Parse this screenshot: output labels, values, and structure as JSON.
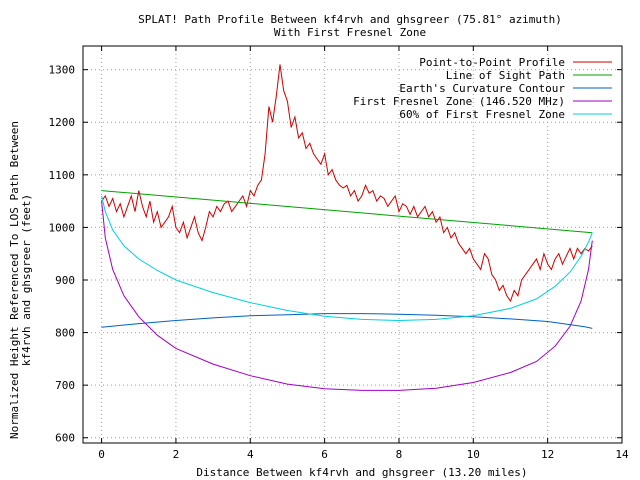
{
  "chart_data": {
    "type": "line",
    "title": "SPLAT! Path Profile Between kf4rvh and ghsgreer (75.81° azimuth)",
    "subtitle": "With First Fresnel Zone",
    "xlabel": "Distance Between kf4rvh and ghsgreer (13.20 miles)",
    "ylabel_lines": [
      "Normalized Height Referenced To LOS Path Between",
      "kf4rvh and ghsgreer (feet)"
    ],
    "xlim": [
      -0.5,
      14
    ],
    "ylim": [
      590,
      1345
    ],
    "x_ticks": [
      0,
      2,
      4,
      6,
      8,
      10,
      12,
      14
    ],
    "x_tick_labels": [
      "0",
      "2",
      "4",
      "6",
      "8",
      "10",
      "12",
      "14"
    ],
    "y_ticks": [
      600,
      700,
      800,
      900,
      1000,
      1100,
      1200,
      1300
    ],
    "y_tick_labels": [
      "600",
      "700",
      "800",
      "900",
      "1000",
      "1100",
      "1200",
      "1300"
    ],
    "grid": true,
    "legend_position": "top-right",
    "series": [
      {
        "name": "Point-to-Point Profile",
        "color": "#cc0000",
        "x": [
          0.0,
          0.1,
          0.2,
          0.3,
          0.4,
          0.5,
          0.6,
          0.7,
          0.8,
          0.9,
          1.0,
          1.1,
          1.2,
          1.3,
          1.4,
          1.5,
          1.6,
          1.7,
          1.8,
          1.9,
          2.0,
          2.1,
          2.2,
          2.3,
          2.4,
          2.5,
          2.6,
          2.7,
          2.8,
          2.9,
          3.0,
          3.1,
          3.2,
          3.3,
          3.4,
          3.5,
          3.6,
          3.7,
          3.8,
          3.9,
          4.0,
          4.1,
          4.2,
          4.3,
          4.4,
          4.5,
          4.6,
          4.7,
          4.8,
          4.9,
          5.0,
          5.1,
          5.2,
          5.3,
          5.4,
          5.5,
          5.6,
          5.7,
          5.8,
          5.9,
          6.0,
          6.1,
          6.2,
          6.3,
          6.4,
          6.5,
          6.6,
          6.7,
          6.8,
          6.9,
          7.0,
          7.1,
          7.2,
          7.3,
          7.4,
          7.5,
          7.6,
          7.7,
          7.8,
          7.9,
          8.0,
          8.1,
          8.2,
          8.3,
          8.4,
          8.5,
          8.6,
          8.7,
          8.8,
          8.9,
          9.0,
          9.1,
          9.2,
          9.3,
          9.4,
          9.5,
          9.6,
          9.7,
          9.8,
          9.9,
          10.0,
          10.1,
          10.2,
          10.3,
          10.4,
          10.5,
          10.6,
          10.7,
          10.8,
          10.9,
          11.0,
          11.1,
          11.2,
          11.3,
          11.4,
          11.5,
          11.6,
          11.7,
          11.8,
          11.9,
          12.0,
          12.1,
          12.2,
          12.3,
          12.4,
          12.5,
          12.6,
          12.7,
          12.8,
          12.9,
          13.0,
          13.1,
          13.2
        ],
        "y": [
          1050,
          1060,
          1040,
          1055,
          1030,
          1045,
          1020,
          1040,
          1060,
          1030,
          1070,
          1040,
          1020,
          1050,
          1010,
          1030,
          1000,
          1010,
          1020,
          1040,
          1000,
          990,
          1010,
          980,
          1000,
          1020,
          990,
          975,
          1000,
          1030,
          1020,
          1040,
          1030,
          1045,
          1050,
          1030,
          1040,
          1050,
          1060,
          1040,
          1070,
          1060,
          1080,
          1090,
          1140,
          1230,
          1200,
          1250,
          1310,
          1260,
          1240,
          1190,
          1210,
          1170,
          1180,
          1150,
          1160,
          1140,
          1130,
          1120,
          1140,
          1100,
          1110,
          1090,
          1080,
          1075,
          1080,
          1060,
          1070,
          1050,
          1060,
          1080,
          1065,
          1070,
          1050,
          1060,
          1055,
          1040,
          1050,
          1060,
          1030,
          1045,
          1040,
          1025,
          1040,
          1020,
          1030,
          1040,
          1020,
          1030,
          1010,
          1020,
          990,
          1000,
          980,
          990,
          970,
          960,
          950,
          960,
          940,
          930,
          920,
          950,
          940,
          910,
          900,
          880,
          890,
          870,
          860,
          880,
          870,
          900,
          910,
          920,
          930,
          940,
          920,
          950,
          930,
          920,
          940,
          950,
          930,
          945,
          960,
          940,
          960,
          950,
          960,
          955,
          965
        ]
      },
      {
        "name": "Line of Sight Path",
        "color": "#00a000",
        "x": [
          0,
          13.2
        ],
        "y": [
          1070,
          990
        ]
      },
      {
        "name": "Earth's Curvature Contour",
        "color": "#0060c0",
        "x": [
          0,
          1,
          2,
          3,
          4,
          5,
          6,
          6.6,
          7,
          8,
          9,
          10,
          11,
          12,
          13,
          13.2
        ],
        "y": [
          810,
          817,
          823,
          828,
          832,
          834,
          836,
          836,
          836,
          835,
          833,
          830,
          826,
          821,
          811,
          808
        ]
      },
      {
        "name": "First Fresnel Zone (146.520 MHz)",
        "color": "#a000c0",
        "x": [
          0,
          0.1,
          0.3,
          0.6,
          1,
          1.5,
          2,
          3,
          4,
          5,
          6,
          7,
          8,
          9,
          10,
          11,
          11.7,
          12.2,
          12.6,
          12.9,
          13.1,
          13.2
        ],
        "y": [
          1050,
          980,
          920,
          870,
          830,
          795,
          770,
          740,
          718,
          702,
          693,
          690,
          690,
          694,
          705,
          724,
          745,
          774,
          812,
          860,
          920,
          975
        ]
      },
      {
        "name": "60% of First Fresnel Zone",
        "color": "#00d0e0",
        "x": [
          0,
          0.1,
          0.3,
          0.6,
          1,
          1.5,
          2,
          3,
          4,
          5,
          6,
          7,
          8,
          9,
          10,
          11,
          11.7,
          12.2,
          12.6,
          12.9,
          13.1,
          13.2
        ],
        "y": [
          1060,
          1030,
          995,
          965,
          940,
          918,
          900,
          876,
          857,
          842,
          831,
          825,
          823,
          825,
          832,
          846,
          864,
          888,
          915,
          945,
          972,
          990
        ]
      }
    ]
  }
}
